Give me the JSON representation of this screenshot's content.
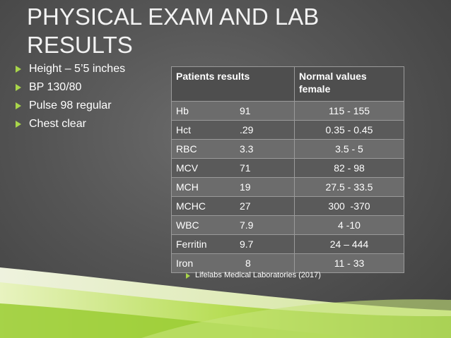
{
  "slide": {
    "title": "PHYSICAL EXAM AND LAB RESULTS",
    "bullets": [
      "Height – 5’5 inches",
      "BP 130/80",
      "Pulse 98 regular",
      "Chest clear"
    ],
    "table": {
      "headers": [
        "Patients results",
        "Normal values female"
      ],
      "rows": [
        {
          "test": "Hb",
          "result": "91",
          "normal": "115 - 155"
        },
        {
          "test": "Hct",
          "result": ".29",
          "normal": "0.35 - 0.45"
        },
        {
          "test": "RBC",
          "result": "3.3",
          "normal": "3.5 - 5"
        },
        {
          "test": "MCV",
          "result": "71",
          "normal": "82 - 98"
        },
        {
          "test": "MCH",
          "result": "19",
          "normal": "27.5 - 33.5"
        },
        {
          "test": "MCHC",
          "result": "27",
          "normal": "300  -370"
        },
        {
          "test": "WBC",
          "result": "7.9",
          "normal": "4 -10"
        },
        {
          "test": "Ferritin",
          "result": "9.7",
          "normal": "24 – 444"
        },
        {
          "test": "Iron",
          "result": "8",
          "normal": "11 - 33"
        }
      ]
    },
    "reference": "Lifelabs Medical Laboratories (2017)",
    "colors": {
      "accent": "#a9d64a",
      "background": "#555555"
    }
  }
}
